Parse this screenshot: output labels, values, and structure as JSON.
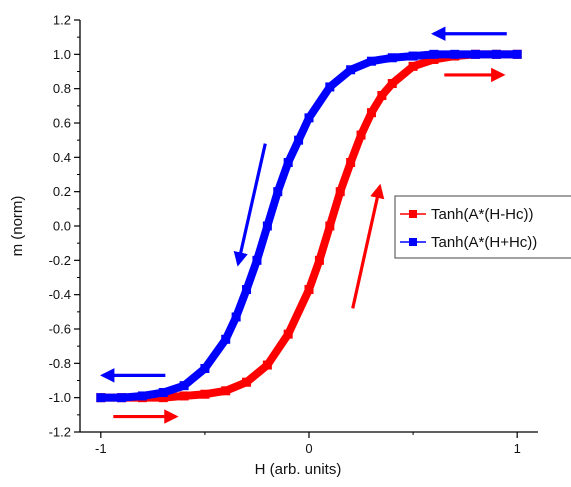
{
  "chart_data": {
    "type": "line",
    "title": "",
    "xlabel": "H (arb. units)",
    "ylabel": "m (norm)",
    "xlim": [
      -1.1,
      1.1
    ],
    "ylim": [
      -1.2,
      1.2
    ],
    "x_ticks": [
      -1,
      0,
      1
    ],
    "x_tick_labels": [
      "-1",
      "0",
      "1"
    ],
    "y_ticks": [
      -1.2,
      -1.0,
      -0.8,
      -0.6,
      -0.4,
      -0.2,
      0.0,
      0.2,
      0.4,
      0.6,
      0.8,
      1.0,
      1.2
    ],
    "y_tick_labels": [
      "-1.2",
      "-1.0",
      "-0.8",
      "-0.6",
      "-0.4",
      "-0.2",
      "0.0",
      "0.2",
      "0.4",
      "0.6",
      "0.8",
      "1.0",
      "1.2"
    ],
    "grid": false,
    "legend_position": "right",
    "series": [
      {
        "name": "Tanh(A*(H-Hc))",
        "color": "#ff0000",
        "marker": "square",
        "x": [
          -1.0,
          -0.9,
          -0.8,
          -0.7,
          -0.6,
          -0.5,
          -0.4,
          -0.3,
          -0.2,
          -0.1,
          0.0,
          0.05,
          0.1,
          0.15,
          0.2,
          0.25,
          0.3,
          0.35,
          0.4,
          0.5,
          0.6,
          0.7,
          0.8,
          0.9,
          1.0
        ],
        "y": [
          -1.0,
          -1.0,
          -1.0,
          -1.0,
          -0.99,
          -0.98,
          -0.96,
          -0.91,
          -0.81,
          -0.63,
          -0.37,
          -0.2,
          0.0,
          0.2,
          0.37,
          0.53,
          0.66,
          0.76,
          0.83,
          0.93,
          0.97,
          0.99,
          1.0,
          1.0,
          1.0
        ]
      },
      {
        "name": "Tanh(A*(H+Hc))",
        "color": "#0000ff",
        "marker": "square",
        "x": [
          -1.0,
          -0.9,
          -0.8,
          -0.7,
          -0.6,
          -0.5,
          -0.4,
          -0.35,
          -0.3,
          -0.25,
          -0.2,
          -0.15,
          -0.1,
          -0.05,
          0.0,
          0.1,
          0.2,
          0.3,
          0.4,
          0.5,
          0.6,
          0.7,
          0.8,
          0.9,
          1.0
        ],
        "y": [
          -1.0,
          -1.0,
          -0.99,
          -0.97,
          -0.93,
          -0.83,
          -0.66,
          -0.53,
          -0.37,
          -0.2,
          0.0,
          0.2,
          0.37,
          0.5,
          0.63,
          0.81,
          0.91,
          0.96,
          0.98,
          0.99,
          1.0,
          1.0,
          1.0,
          1.0,
          1.0
        ]
      }
    ],
    "annotations": [
      {
        "name": "arrow-blue-top",
        "color": "#0000ff",
        "from": [
          0.95,
          1.12
        ],
        "to": [
          0.6,
          1.12
        ]
      },
      {
        "name": "arrow-red-top",
        "color": "#ff0000",
        "from": [
          0.65,
          0.88
        ],
        "to": [
          0.93,
          0.88
        ]
      },
      {
        "name": "arrow-blue-mid",
        "color": "#0000ff",
        "from": [
          -0.21,
          0.48
        ],
        "to": [
          -0.34,
          -0.22
        ]
      },
      {
        "name": "arrow-red-mid",
        "color": "#ff0000",
        "from": [
          0.21,
          -0.48
        ],
        "to": [
          0.34,
          0.23
        ]
      },
      {
        "name": "arrow-blue-bottom",
        "color": "#0000ff",
        "from": [
          -0.69,
          -0.87
        ],
        "to": [
          -0.99,
          -0.87
        ]
      },
      {
        "name": "arrow-red-bottom",
        "color": "#ff0000",
        "from": [
          -0.94,
          -1.11
        ],
        "to": [
          -0.64,
          -1.11
        ]
      }
    ]
  }
}
